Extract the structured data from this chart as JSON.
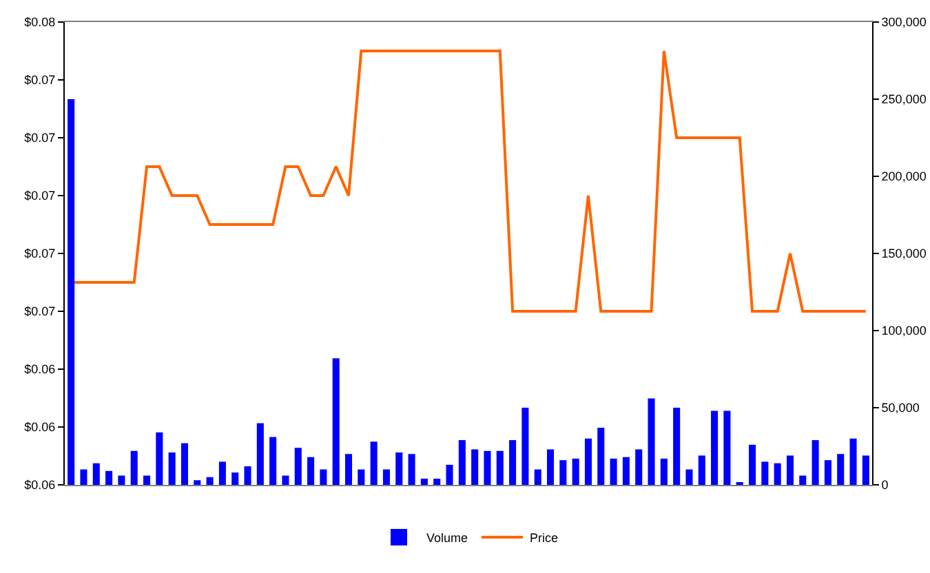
{
  "chart_data": {
    "type": "bar",
    "categories": [
      null,
      null,
      null,
      null,
      null,
      null,
      null,
      null,
      null,
      null,
      null,
      null,
      null,
      null,
      null,
      null,
      null,
      null,
      null,
      null,
      null,
      null,
      null,
      null,
      null,
      null,
      null,
      null,
      null,
      null,
      null,
      null,
      null,
      null,
      null,
      null,
      null,
      null,
      null,
      null,
      null,
      null,
      null,
      null,
      null,
      null,
      null,
      null,
      null,
      null,
      null,
      null,
      null,
      null,
      null,
      null,
      null,
      null,
      null,
      null,
      null,
      null,
      null,
      null
    ],
    "series": [
      {
        "name": "Volume",
        "axis": "y2",
        "color": "#0000ff",
        "values": [
          250000,
          10000,
          14000,
          9000,
          6000,
          22000,
          6000,
          34000,
          21000,
          27000,
          3000,
          5000,
          15000,
          8000,
          12000,
          40000,
          31000,
          6000,
          24000,
          18000,
          10000,
          82000,
          20000,
          10000,
          28000,
          10000,
          21000,
          20000,
          4000,
          4000,
          13000,
          29000,
          23000,
          22000,
          22000,
          29000,
          50000,
          10000,
          23000,
          16000,
          17000,
          30000,
          37000,
          17000,
          18000,
          23000,
          56000,
          17000,
          50000,
          10000,
          19000,
          48000,
          48000,
          1000,
          26000,
          15000,
          14000,
          19000,
          6000,
          29000,
          16000,
          20000,
          30000,
          19000
        ]
      },
      {
        "name": "Price",
        "type": "line",
        "axis": "y",
        "color": "#ff6600",
        "values": [
          0.067,
          0.067,
          0.067,
          0.067,
          0.067,
          0.067,
          0.071,
          0.071,
          0.07,
          0.07,
          0.07,
          0.069,
          0.069,
          0.069,
          0.069,
          0.069,
          0.069,
          0.071,
          0.071,
          0.07,
          0.07,
          0.071,
          0.07,
          0.075,
          0.075,
          0.075,
          0.075,
          0.075,
          0.075,
          0.075,
          0.075,
          0.075,
          0.075,
          0.075,
          0.075,
          0.066,
          0.066,
          0.066,
          0.066,
          0.066,
          0.066,
          0.07,
          0.066,
          0.066,
          0.066,
          0.066,
          0.066,
          0.075,
          0.072,
          0.072,
          0.072,
          0.072,
          0.072,
          0.072,
          0.066,
          0.066,
          0.066,
          0.068,
          0.066,
          0.066,
          0.066,
          0.066,
          0.066,
          0.066
        ]
      }
    ],
    "ylim": [
      0.06,
      0.076
    ],
    "yticks": [
      {
        "value": 0.06,
        "label": "$0.06"
      },
      {
        "value": 0.062,
        "label": "$0.06"
      },
      {
        "value": 0.064,
        "label": "$0.06"
      },
      {
        "value": 0.066,
        "label": "$0.07"
      },
      {
        "value": 0.068,
        "label": "$0.07"
      },
      {
        "value": 0.07,
        "label": "$0.07"
      },
      {
        "value": 0.072,
        "label": "$0.07"
      },
      {
        "value": 0.074,
        "label": "$0.07"
      },
      {
        "value": 0.076,
        "label": "$0.08"
      }
    ],
    "y2lim": [
      0,
      300000
    ],
    "y2ticks": [
      {
        "value": 0,
        "label": "0"
      },
      {
        "value": 50000,
        "label": "50,000"
      },
      {
        "value": 100000,
        "label": "100,000"
      },
      {
        "value": 150000,
        "label": "150,000"
      },
      {
        "value": 200000,
        "label": "200,000"
      },
      {
        "value": 250000,
        "label": "250,000"
      },
      {
        "value": 300000,
        "label": "300,000"
      }
    ],
    "grid": false,
    "legend": "bottom"
  }
}
